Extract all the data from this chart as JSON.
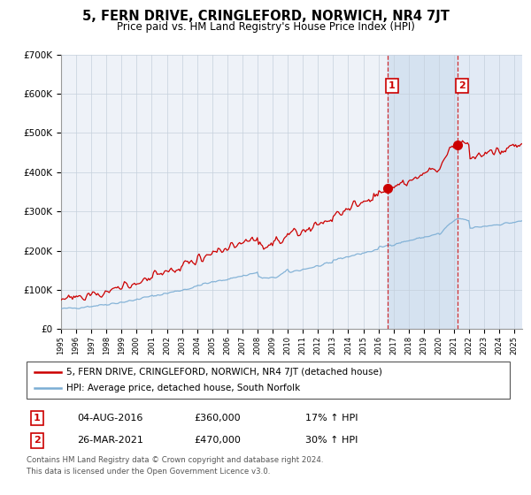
{
  "title": "5, FERN DRIVE, CRINGLEFORD, NORWICH, NR4 7JT",
  "subtitle": "Price paid vs. HM Land Registry's House Price Index (HPI)",
  "legend_red": "5, FERN DRIVE, CRINGLEFORD, NORWICH, NR4 7JT (detached house)",
  "legend_blue": "HPI: Average price, detached house, South Norfolk",
  "annotation1_date": "04-AUG-2016",
  "annotation1_price": "£360,000",
  "annotation1_hpi": "17% ↑ HPI",
  "annotation2_date": "26-MAR-2021",
  "annotation2_price": "£470,000",
  "annotation2_hpi": "30% ↑ HPI",
  "footnote1": "Contains HM Land Registry data © Crown copyright and database right 2024.",
  "footnote2": "This data is licensed under the Open Government Licence v3.0.",
  "red_color": "#cc0000",
  "blue_color": "#7aadd4",
  "chart_bg": "#eef2f8",
  "shaded_bg": "#d5e2f0",
  "right_shade": "#e2eaf5",
  "grid_color": "#c5d0dc",
  "ylim_min": 0,
  "ylim_max": 700000,
  "marker1_year": 2016.6,
  "marker1_val": 360000,
  "marker2_year": 2021.25,
  "marker2_val": 470000,
  "vline1_year": 2016.6,
  "vline2_year": 2021.25,
  "xstart": 1995,
  "xend": 2025.5
}
